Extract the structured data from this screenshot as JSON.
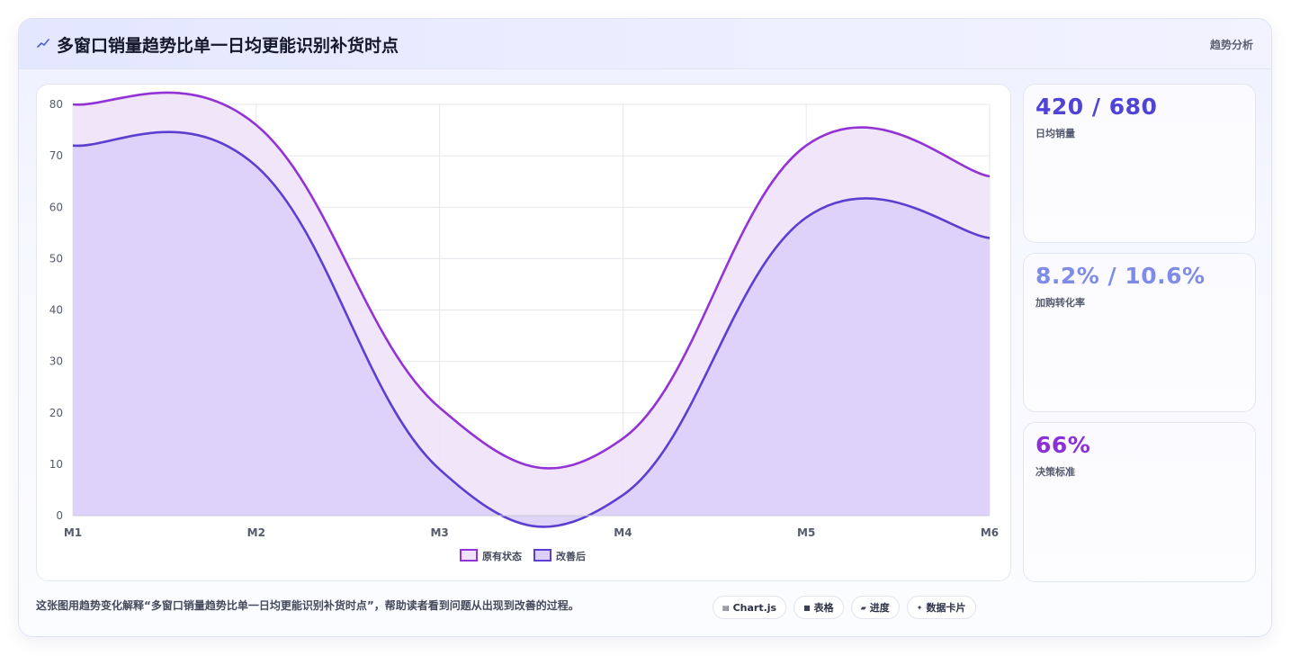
{
  "header": {
    "title": "多窗口销量趋势比单一日均更能识别补货时点",
    "badge": "趋势分析",
    "icon": "trend-line-icon",
    "icon_color": "#4f5dd8"
  },
  "stats": [
    {
      "value": "420 / 680",
      "label": "日均销量",
      "color": "#4f44d6"
    },
    {
      "value": "8.2% / 10.6%",
      "label": "加购转化率",
      "color": "#7f8be8"
    },
    {
      "value": "66%",
      "label": "决策标准",
      "color": "#8b2fd6"
    }
  ],
  "caption": "这张图用趋势变化解释“多窗口销量趋势比单一日均更能识别补货时点”，帮助读者看到问题从出现到改善的过程。",
  "tags": [
    {
      "icon": "chart-icon",
      "glyph": "▤",
      "label": "Chart.js"
    },
    {
      "icon": "table-icon",
      "glyph": "■",
      "label": "表格"
    },
    {
      "icon": "progress-icon",
      "glyph": "▰",
      "label": "进度"
    },
    {
      "icon": "sparkle-icon",
      "glyph": "✦",
      "label": "数据卡片"
    }
  ],
  "chart_data": {
    "type": "area",
    "categories": [
      "M1",
      "M2",
      "M3",
      "M4",
      "M5",
      "M6"
    ],
    "series": [
      {
        "name": "原有状态",
        "values": [
          80,
          76,
          21,
          15,
          72,
          66
        ],
        "color": "#9333d6",
        "fill": "#efe2fa"
      },
      {
        "name": "改善后",
        "values": [
          72,
          68,
          9,
          4,
          58,
          54
        ],
        "color": "#5a3fd1",
        "fill": "#dccffa"
      }
    ],
    "ylim": [
      0,
      80
    ],
    "yticks": [
      0,
      10,
      20,
      30,
      40,
      50,
      60,
      70,
      80
    ],
    "grid": true,
    "legend": "bottom-center"
  }
}
